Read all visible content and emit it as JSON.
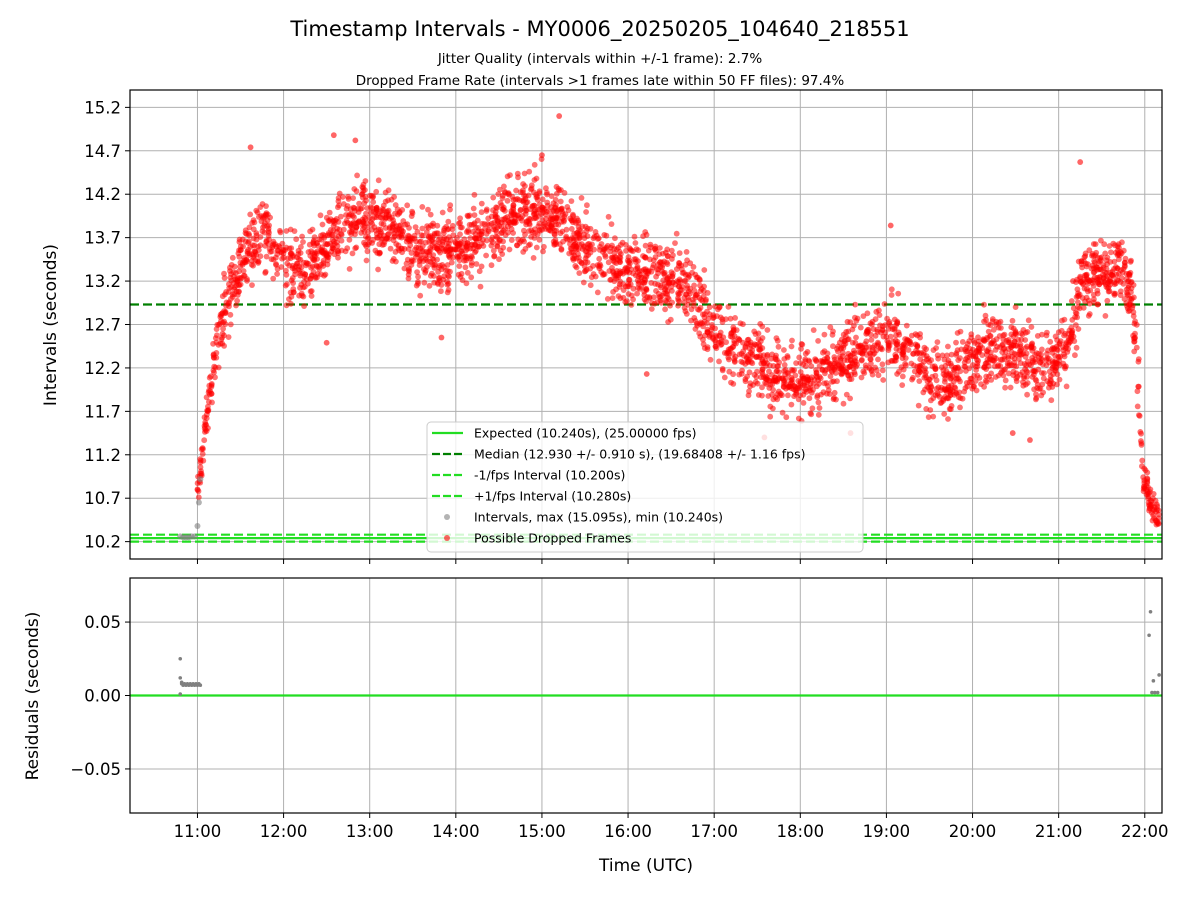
{
  "chart_data": [
    {
      "type": "scatter",
      "title": "Timestamp Intervals - MY0006_20250205_104640_218551",
      "subtitle_lines": [
        "Jitter Quality (intervals within +/-1 frame): 2.7%",
        "Dropped Frame Rate (intervals >1 frames late within 50 FF files): 97.4%"
      ],
      "xlabel": "",
      "ylabel": "Intervals (seconds)",
      "xlim": [
        "10:13",
        "22:12"
      ],
      "ylim": [
        10.0,
        15.4
      ],
      "yticks": [
        10.2,
        10.7,
        11.2,
        11.7,
        12.2,
        12.7,
        13.2,
        13.7,
        14.2,
        14.7,
        15.2
      ],
      "xticks": [
        "11:00",
        "12:00",
        "13:00",
        "14:00",
        "15:00",
        "16:00",
        "17:00",
        "18:00",
        "19:00",
        "20:00",
        "21:00",
        "22:00"
      ],
      "grid": true,
      "legend_position": "lower-center",
      "lines": [
        {
          "name": "Expected (10.240s), (25.00000 fps)",
          "y": 10.24,
          "style": "solid",
          "color": "#22dd22"
        },
        {
          "name": "Median (12.930 +/- 0.910 s), (19.68408 +/- 1.16 fps)",
          "y": 12.93,
          "style": "dashed",
          "color": "#007f00"
        },
        {
          "name": "-1/fps Interval (10.200s)",
          "y": 10.2,
          "style": "dashed",
          "color": "#22dd22"
        },
        {
          "name": "+1/fps Interval (10.280s)",
          "y": 10.28,
          "style": "dashed",
          "color": "#22dd22"
        }
      ],
      "series": [
        {
          "name": "Intervals, max (15.095s), min (10.240s)",
          "color": "#808080",
          "points": [
            {
              "x": "10:48",
              "y": 10.26
            },
            {
              "x": "10:50",
              "y": 10.25
            },
            {
              "x": "10:52",
              "y": 10.25
            },
            {
              "x": "10:54",
              "y": 10.25
            },
            {
              "x": "10:56",
              "y": 10.26
            },
            {
              "x": "10:58",
              "y": 10.26
            },
            {
              "x": "11:00",
              "y": 10.38
            },
            {
              "x": "11:01",
              "y": 10.65
            },
            {
              "x": "11:02",
              "y": 10.92
            }
          ]
        },
        {
          "name": "Possible Dropped Frames",
          "color": "#ff0000",
          "trend": [
            {
              "x": "11:00",
              "y": 10.8
            },
            {
              "x": "11:10",
              "y": 12.1
            },
            {
              "x": "11:20",
              "y": 12.9
            },
            {
              "x": "11:30",
              "y": 13.4
            },
            {
              "x": "11:45",
              "y": 13.8
            },
            {
              "x": "12:00",
              "y": 13.4
            },
            {
              "x": "12:15",
              "y": 13.3
            },
            {
              "x": "12:30",
              "y": 13.6
            },
            {
              "x": "12:45",
              "y": 13.9
            },
            {
              "x": "13:00",
              "y": 13.9
            },
            {
              "x": "13:15",
              "y": 13.8
            },
            {
              "x": "13:30",
              "y": 13.6
            },
            {
              "x": "13:45",
              "y": 13.5
            },
            {
              "x": "14:00",
              "y": 13.6
            },
            {
              "x": "14:15",
              "y": 13.6
            },
            {
              "x": "14:30",
              "y": 13.9
            },
            {
              "x": "14:45",
              "y": 14.0
            },
            {
              "x": "15:00",
              "y": 14.0
            },
            {
              "x": "15:15",
              "y": 13.9
            },
            {
              "x": "15:30",
              "y": 13.6
            },
            {
              "x": "16:00",
              "y": 13.3
            },
            {
              "x": "16:30",
              "y": 13.2
            },
            {
              "x": "16:45",
              "y": 13.1
            },
            {
              "x": "17:00",
              "y": 12.6
            },
            {
              "x": "17:15",
              "y": 12.4
            },
            {
              "x": "17:30",
              "y": 12.3
            },
            {
              "x": "17:45",
              "y": 12.1
            },
            {
              "x": "18:00",
              "y": 12.05
            },
            {
              "x": "18:15",
              "y": 12.1
            },
            {
              "x": "18:30",
              "y": 12.3
            },
            {
              "x": "18:45",
              "y": 12.4
            },
            {
              "x": "19:00",
              "y": 12.55
            },
            {
              "x": "19:15",
              "y": 12.45
            },
            {
              "x": "19:30",
              "y": 12.1
            },
            {
              "x": "19:45",
              "y": 12.05
            },
            {
              "x": "20:00",
              "y": 12.3
            },
            {
              "x": "20:15",
              "y": 12.45
            },
            {
              "x": "20:30",
              "y": 12.4
            },
            {
              "x": "20:45",
              "y": 12.2
            },
            {
              "x": "21:00",
              "y": 12.35
            },
            {
              "x": "21:10",
              "y": 12.6
            },
            {
              "x": "21:15",
              "y": 13.2
            },
            {
              "x": "21:30",
              "y": 13.3
            },
            {
              "x": "21:45",
              "y": 13.4
            },
            {
              "x": "21:52",
              "y": 12.9
            },
            {
              "x": "21:56",
              "y": 11.8
            },
            {
              "x": "21:59",
              "y": 10.9
            },
            {
              "x": "22:05",
              "y": 10.6
            },
            {
              "x": "22:10",
              "y": 10.5
            }
          ],
          "spread": 0.35,
          "outliers": [
            {
              "x": "11:37",
              "y": 14.74
            },
            {
              "x": "12:35",
              "y": 14.88
            },
            {
              "x": "12:50",
              "y": 14.82
            },
            {
              "x": "15:12",
              "y": 15.1
            },
            {
              "x": "15:00",
              "y": 14.65
            },
            {
              "x": "21:15",
              "y": 14.57
            },
            {
              "x": "19:03",
              "y": 13.84
            },
            {
              "x": "12:30",
              "y": 12.49
            },
            {
              "x": "13:50",
              "y": 12.55
            },
            {
              "x": "16:13",
              "y": 12.13
            },
            {
              "x": "17:35",
              "y": 11.4
            },
            {
              "x": "18:35",
              "y": 11.45
            },
            {
              "x": "20:28",
              "y": 11.45
            },
            {
              "x": "20:40",
              "y": 11.37
            },
            {
              "x": "21:10",
              "y": 13.2
            }
          ]
        }
      ]
    },
    {
      "type": "scatter",
      "title": "",
      "xlabel": "Time (UTC)",
      "ylabel": "Residuals (seconds)",
      "xlim": [
        "10:13",
        "22:12"
      ],
      "ylim": [
        -0.08,
        0.08
      ],
      "yticks": [
        -0.05,
        0.0,
        0.05
      ],
      "ytick_labels": [
        "−0.05",
        "0.00",
        "0.05"
      ],
      "xticks": [
        "11:00",
        "12:00",
        "13:00",
        "14:00",
        "15:00",
        "16:00",
        "17:00",
        "18:00",
        "19:00",
        "20:00",
        "21:00",
        "22:00"
      ],
      "grid": true,
      "lines": [
        {
          "name": "",
          "y": 0.0,
          "style": "solid",
          "color": "#22dd22"
        }
      ],
      "series": [
        {
          "name": "",
          "color": "#808080",
          "points": [
            {
              "x": "10:48",
              "y": 0.025
            },
            {
              "x": "10:48",
              "y": 0.012
            },
            {
              "x": "10:48",
              "y": 0.001
            },
            {
              "x": "10:49",
              "y": 0.009
            },
            {
              "x": "10:49",
              "y": 0.008
            },
            {
              "x": "10:50",
              "y": 0.007
            },
            {
              "x": "10:51",
              "y": 0.008
            },
            {
              "x": "10:52",
              "y": 0.007
            },
            {
              "x": "10:53",
              "y": 0.008
            },
            {
              "x": "10:54",
              "y": 0.007
            },
            {
              "x": "10:55",
              "y": 0.008
            },
            {
              "x": "10:56",
              "y": 0.007
            },
            {
              "x": "10:57",
              "y": 0.008
            },
            {
              "x": "10:58",
              "y": 0.007
            },
            {
              "x": "10:59",
              "y": 0.008
            },
            {
              "x": "11:00",
              "y": 0.007
            },
            {
              "x": "11:01",
              "y": 0.008
            },
            {
              "x": "11:02",
              "y": 0.007
            },
            {
              "x": "22:04",
              "y": 0.057
            },
            {
              "x": "22:03",
              "y": 0.041
            },
            {
              "x": "22:06",
              "y": 0.01
            },
            {
              "x": "22:07",
              "y": 0.002
            },
            {
              "x": "22:05",
              "y": 0.002
            },
            {
              "x": "22:09",
              "y": 0.002
            },
            {
              "x": "22:10",
              "y": 0.014
            }
          ]
        }
      ]
    }
  ],
  "legend": {
    "entries": [
      {
        "label": "Expected (10.240s), (25.00000 fps)",
        "kind": "line-solid",
        "color": "#22dd22"
      },
      {
        "label": "Median (12.930 +/- 0.910 s), (19.68408 +/- 1.16 fps)",
        "kind": "line-dashed",
        "color": "#007f00"
      },
      {
        "label": "-1/fps Interval (10.200s)",
        "kind": "line-dashed",
        "color": "#22dd22"
      },
      {
        "label": "+1/fps Interval (10.280s)",
        "kind": "line-dashed",
        "color": "#22dd22"
      },
      {
        "label": "Intervals, max (15.095s), min (10.240s)",
        "kind": "dot",
        "color": "#808080"
      },
      {
        "label": "Possible Dropped Frames",
        "kind": "dot",
        "color": "#ff0000"
      }
    ]
  }
}
